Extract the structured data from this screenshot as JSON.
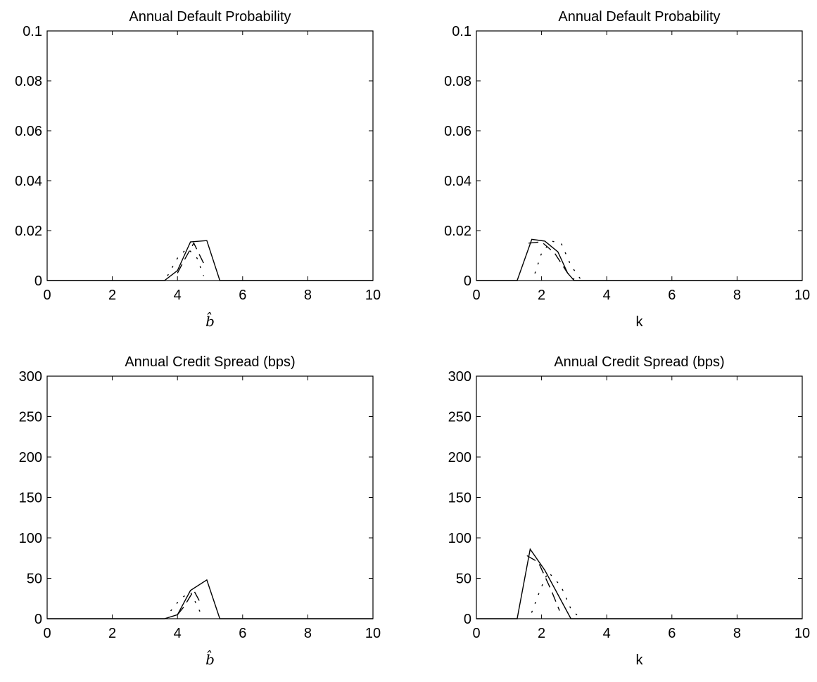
{
  "chart_data": [
    {
      "type": "line",
      "title": "Annual Default Probability",
      "xlabel": "b̂",
      "ylabel": "",
      "xlim": [
        0,
        10
      ],
      "ylim": [
        0,
        0.1
      ],
      "xticks": [
        "0",
        "2",
        "4",
        "6",
        "8",
        "10"
      ],
      "yticks": [
        "0",
        "0.02",
        "0.04",
        "0.06",
        "0.08",
        "0.1"
      ],
      "grid": false,
      "series": [
        {
          "style": "solid",
          "x": [
            0,
            3.6,
            4.0,
            4.4,
            4.9,
            5.3,
            10
          ],
          "y": [
            0,
            0,
            0.004,
            0.0155,
            0.016,
            0,
            0
          ]
        },
        {
          "style": "dashed",
          "x": [
            4.0,
            4.2,
            4.5,
            4.8
          ],
          "y": [
            0.003,
            0.008,
            0.015,
            0.007
          ]
        },
        {
          "style": "dotted",
          "x": [
            3.7,
            4.0,
            4.3,
            4.6,
            4.8
          ],
          "y": [
            0.002,
            0.009,
            0.013,
            0.009,
            0.002
          ]
        }
      ]
    },
    {
      "type": "line",
      "title": "Annual Default Probability",
      "xlabel": "k",
      "ylabel": "",
      "xlim": [
        0,
        10
      ],
      "ylim": [
        0,
        0.1
      ],
      "xticks": [
        "0",
        "2",
        "4",
        "6",
        "8",
        "10"
      ],
      "yticks": [
        "0",
        "0.02",
        "0.04",
        "0.06",
        "0.08",
        "0.1"
      ],
      "grid": false,
      "series": [
        {
          "style": "solid",
          "x": [
            0,
            1.25,
            1.7,
            2.1,
            2.5,
            2.8,
            3.0,
            10
          ],
          "y": [
            0,
            0,
            0.0165,
            0.0158,
            0.0115,
            0.003,
            0,
            0
          ]
        },
        {
          "style": "dashed",
          "x": [
            1.6,
            2.0,
            2.4,
            2.8,
            3.0
          ],
          "y": [
            0.015,
            0.0155,
            0.011,
            0.003,
            0.0005
          ]
        },
        {
          "style": "dotted",
          "x": [
            1.8,
            2.0,
            2.3,
            2.6,
            2.9,
            3.2
          ],
          "y": [
            0.003,
            0.011,
            0.0158,
            0.015,
            0.006,
            0.0005
          ]
        }
      ]
    },
    {
      "type": "line",
      "title": "Annual Credit Spread (bps)",
      "xlabel": "b̂",
      "ylabel": "",
      "xlim": [
        0,
        10
      ],
      "ylim": [
        0,
        300
      ],
      "xticks": [
        "0",
        "2",
        "4",
        "6",
        "8",
        "10"
      ],
      "yticks": [
        "0",
        "50",
        "100",
        "150",
        "200",
        "250",
        "300"
      ],
      "grid": false,
      "series": [
        {
          "style": "solid",
          "x": [
            0,
            3.6,
            4.0,
            4.4,
            4.9,
            5.3,
            10
          ],
          "y": [
            0,
            0,
            5,
            35,
            48,
            0,
            0
          ]
        },
        {
          "style": "dashed",
          "x": [
            4.0,
            4.2,
            4.5,
            4.7
          ],
          "y": [
            5,
            15,
            35,
            20
          ]
        },
        {
          "style": "dotted",
          "x": [
            3.8,
            4.1,
            4.4,
            4.7
          ],
          "y": [
            10,
            25,
            33,
            8
          ]
        }
      ]
    },
    {
      "type": "line",
      "title": "Annual Credit Spread (bps)",
      "xlabel": "k",
      "ylabel": "",
      "xlim": [
        0,
        10
      ],
      "ylim": [
        0,
        300
      ],
      "xticks": [
        "0",
        "2",
        "4",
        "6",
        "8",
        "10"
      ],
      "yticks": [
        "0",
        "50",
        "100",
        "150",
        "200",
        "250",
        "300"
      ],
      "grid": false,
      "series": [
        {
          "style": "solid",
          "x": [
            0,
            1.25,
            1.65,
            2.1,
            2.5,
            2.9,
            10
          ],
          "y": [
            0,
            0,
            86,
            60,
            30,
            0,
            0
          ]
        },
        {
          "style": "dashed",
          "x": [
            1.55,
            1.9,
            2.3,
            2.55
          ],
          "y": [
            78,
            70,
            35,
            10
          ]
        },
        {
          "style": "dotted",
          "x": [
            1.7,
            1.95,
            2.2,
            2.6,
            2.9,
            3.2
          ],
          "y": [
            8,
            35,
            58,
            40,
            12,
            0
          ]
        }
      ]
    }
  ]
}
